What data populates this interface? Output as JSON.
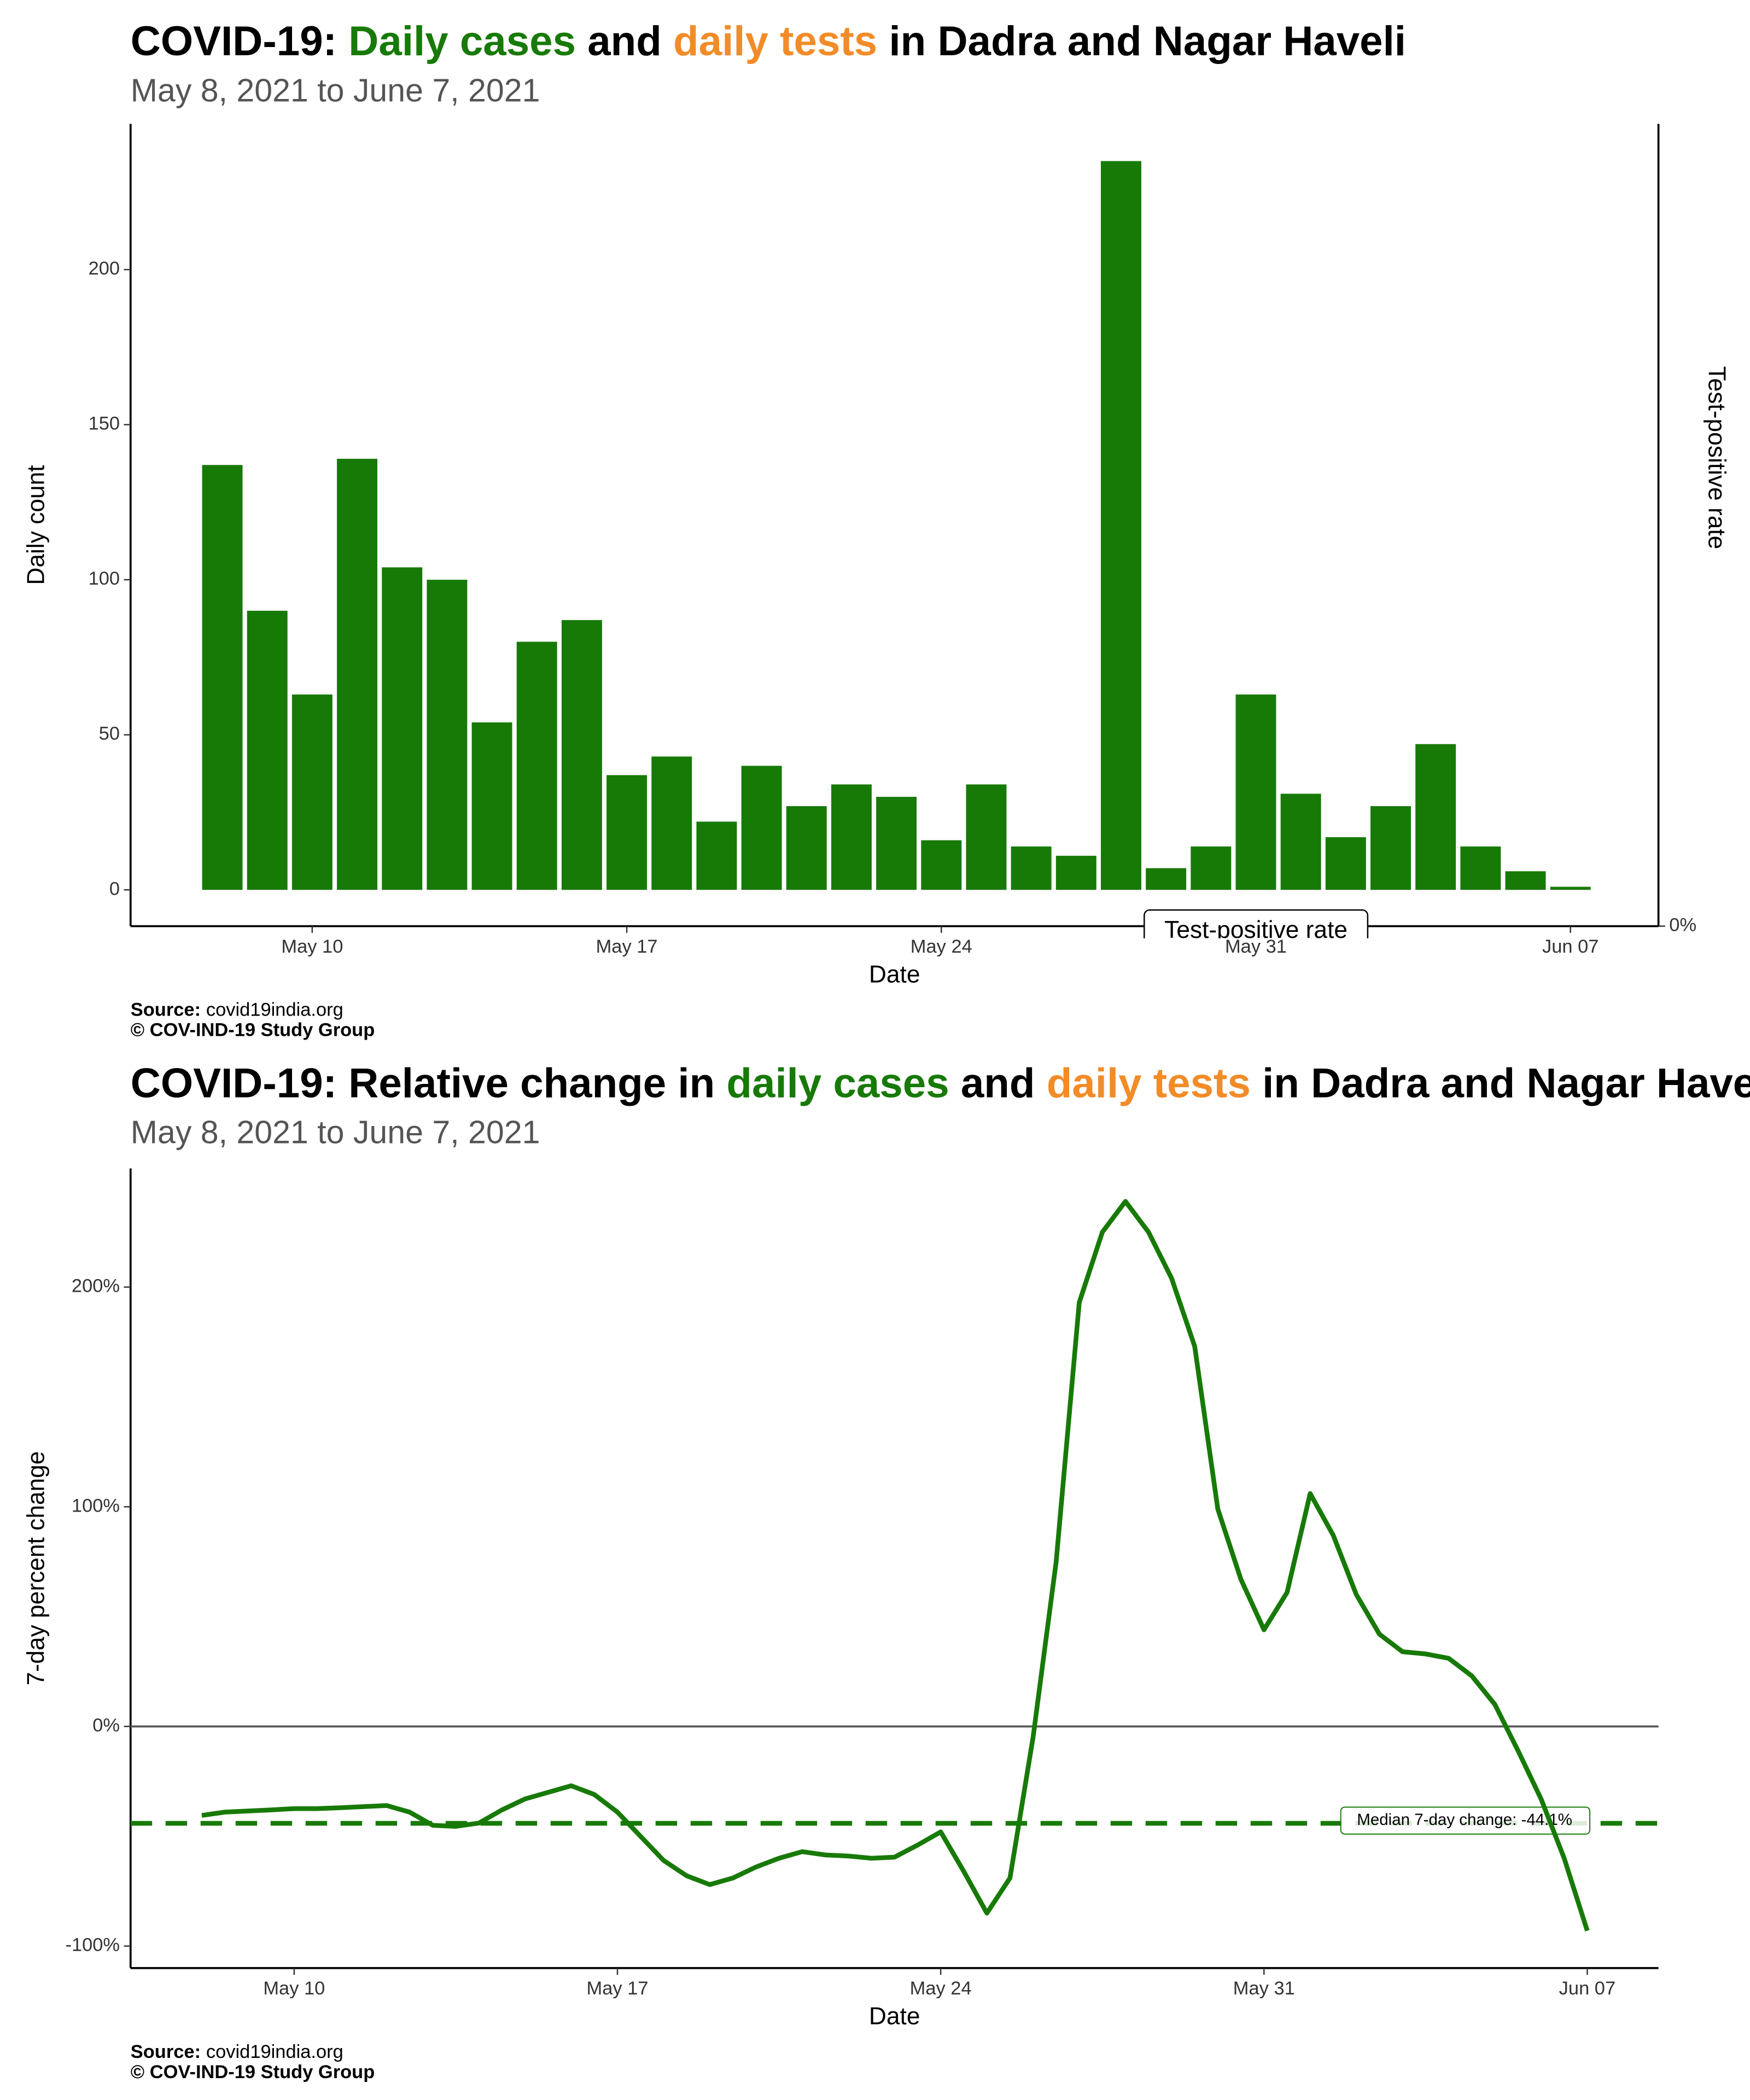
{
  "chart_data": [
    {
      "type": "bar",
      "title": [
        {
          "text": "COVID-19: ",
          "color": "#000000"
        },
        {
          "text": "Daily cases",
          "color": "#177a07"
        },
        {
          "text": " and ",
          "color": "#000000"
        },
        {
          "text": "daily tests",
          "color": "#f28c28"
        },
        {
          "text": " in Dadra and Nagar Haveli",
          "color": "#000000"
        }
      ],
      "subtitle": "May  8, 2021 to June  7, 2021",
      "x_label": "Date",
      "y_label": "Daily count",
      "y2_label": "Test-positive rate",
      "annotation": "Test-positive rate",
      "source_label": "Source:",
      "source": "covid19india.org",
      "copyright": "© COV-IND-19 Study Group",
      "x": [
        "2021-05-08",
        "2021-05-09",
        "2021-05-10",
        "2021-05-11",
        "2021-05-12",
        "2021-05-13",
        "2021-05-14",
        "2021-05-15",
        "2021-05-16",
        "2021-05-17",
        "2021-05-18",
        "2021-05-19",
        "2021-05-20",
        "2021-05-21",
        "2021-05-22",
        "2021-05-23",
        "2021-05-24",
        "2021-05-25",
        "2021-05-26",
        "2021-05-27",
        "2021-05-28",
        "2021-05-29",
        "2021-05-30",
        "2021-05-31",
        "2021-06-01",
        "2021-06-02",
        "2021-06-03",
        "2021-06-04",
        "2021-06-05",
        "2021-06-06",
        "2021-06-07"
      ],
      "values": [
        137,
        90,
        63,
        139,
        104,
        100,
        54,
        80,
        87,
        37,
        43,
        22,
        40,
        27,
        34,
        30,
        16,
        34,
        14,
        11,
        235,
        7,
        14,
        63,
        31,
        17,
        27,
        47,
        14,
        6,
        1
      ],
      "color": "#177a07",
      "xlim": [
        "2021-05-05T23:00",
        "2021-06-08T23:00"
      ],
      "xticks": [
        {
          "value": "2021-05-10",
          "label": "May 10"
        },
        {
          "value": "2021-05-17",
          "label": "May 17"
        },
        {
          "value": "2021-05-24",
          "label": "May 24"
        },
        {
          "value": "2021-05-31",
          "label": "May 31"
        },
        {
          "value": "2021-06-07",
          "label": "Jun 07"
        }
      ],
      "ylim": [
        -11.7,
        247
      ],
      "yticks": [
        0,
        50,
        100,
        150,
        200
      ],
      "y2lim": [
        0,
        1
      ],
      "y2ticks": [
        {
          "value": 0,
          "label": "0%"
        }
      ]
    },
    {
      "type": "line",
      "title": [
        {
          "text": "COVID-19: Relative change in ",
          "color": "#000000"
        },
        {
          "text": "daily cases",
          "color": "#177a07"
        },
        {
          "text": " and ",
          "color": "#000000"
        },
        {
          "text": "daily tests",
          "color": "#f28c28"
        },
        {
          "text": " in Dadra and Nagar Haveli",
          "color": "#000000"
        }
      ],
      "subtitle": "May  8, 2021 to June  7, 2021",
      "x_label": "Date",
      "y_label": "7-day percent change",
      "source_label": "Source:",
      "source": "covid19india.org",
      "copyright": "© COV-IND-19 Study Group",
      "x": [
        "2021-05-08T00:00",
        "2021-05-08T12:00",
        "2021-05-09T00:00",
        "2021-05-09T12:00",
        "2021-05-10T00:00",
        "2021-05-10T12:00",
        "2021-05-11T00:00",
        "2021-05-11T12:00",
        "2021-05-12T00:00",
        "2021-05-12T12:00",
        "2021-05-13T00:00",
        "2021-05-13T12:00",
        "2021-05-14T00:00",
        "2021-05-14T12:00",
        "2021-05-15T00:00",
        "2021-05-15T12:00",
        "2021-05-16T00:00",
        "2021-05-16T12:00",
        "2021-05-17T00:00",
        "2021-05-17T12:00",
        "2021-05-18T00:00",
        "2021-05-18T12:00",
        "2021-05-19T00:00",
        "2021-05-19T12:00",
        "2021-05-20T00:00",
        "2021-05-20T12:00",
        "2021-05-21T00:00",
        "2021-05-21T12:00",
        "2021-05-22T00:00",
        "2021-05-22T12:00",
        "2021-05-23T00:00",
        "2021-05-23T12:00",
        "2021-05-24T00:00",
        "2021-05-24T12:00",
        "2021-05-25T00:00",
        "2021-05-25T12:00",
        "2021-05-26T00:00",
        "2021-05-26T12:00",
        "2021-05-27T00:00",
        "2021-05-27T12:00",
        "2021-05-28T00:00",
        "2021-05-28T12:00",
        "2021-05-29T00:00",
        "2021-05-29T12:00",
        "2021-05-30T00:00",
        "2021-05-30T12:00",
        "2021-05-31T00:00",
        "2021-05-31T12:00",
        "2021-06-01T00:00",
        "2021-06-01T12:00",
        "2021-06-02T00:00",
        "2021-06-02T12:00",
        "2021-06-03T00:00",
        "2021-06-03T12:00",
        "2021-06-04T00:00",
        "2021-06-04T12:00",
        "2021-06-05T00:00",
        "2021-06-05T12:00",
        "2021-06-06T00:00",
        "2021-06-06T12:00",
        "2021-06-07T00:00"
      ],
      "values": [
        -40.5,
        -39,
        -38.5,
        -38,
        -37.4,
        -37.4,
        -37,
        -36.5,
        -36,
        -39,
        -45,
        -45.5,
        -44,
        -38,
        -33,
        -30,
        -27,
        -31,
        -39,
        -50,
        -61,
        -68,
        -72,
        -69,
        -64,
        -60,
        -57,
        -58.5,
        -59,
        -60,
        -59.5,
        -54,
        -48,
        -66,
        -85,
        -69,
        -5,
        75,
        193,
        225,
        239,
        225,
        204,
        173,
        99,
        67,
        44,
        61,
        106,
        87,
        60,
        42,
        34,
        33,
        31,
        23,
        10,
        -11,
        -33,
        -60,
        -93
      ],
      "color": "#177a07",
      "zero_line": true,
      "reference_line": {
        "value": -44.1,
        "label": "Median 7-day change: -44.1%"
      },
      "xlim": [
        "2021-05-06T11:00",
        "2021-06-08T13:00"
      ],
      "xticks": [
        {
          "value": "2021-05-10",
          "label": "May 10"
        },
        {
          "value": "2021-05-17",
          "label": "May 17"
        },
        {
          "value": "2021-05-24",
          "label": "May 24"
        },
        {
          "value": "2021-05-31",
          "label": "May 31"
        },
        {
          "value": "2021-06-07",
          "label": "Jun 07"
        }
      ],
      "ylim": [
        -110,
        254
      ],
      "yticks": [
        {
          "value": -100,
          "label": "-100%"
        },
        {
          "value": 0,
          "label": "0%"
        },
        {
          "value": 100,
          "label": "100%"
        },
        {
          "value": 200,
          "label": "200%"
        }
      ]
    }
  ]
}
